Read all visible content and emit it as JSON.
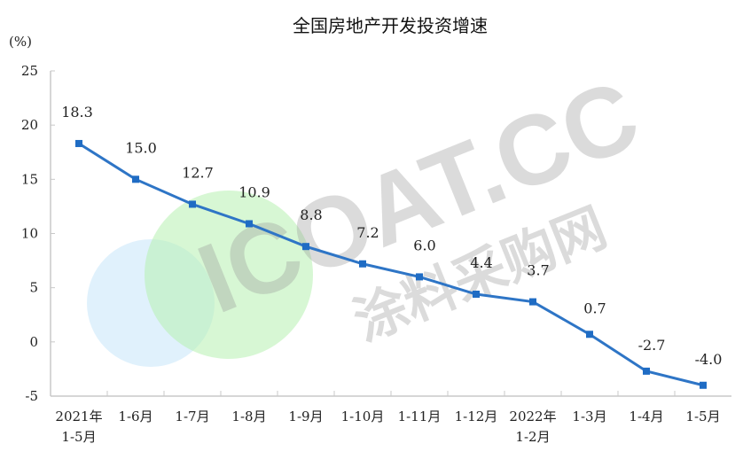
{
  "chart_data": {
    "type": "line",
    "title": "全国房地产开发投资增速",
    "ylabel": "(%)",
    "xlabel": "",
    "ylim": [
      -5,
      25
    ],
    "yticks": [
      -5,
      0,
      5,
      10,
      15,
      20,
      25
    ],
    "grid": false,
    "categories": [
      [
        "2021年",
        "1-5月"
      ],
      [
        "1-6月"
      ],
      [
        "1-7月"
      ],
      [
        "1-8月"
      ],
      [
        "1-9月"
      ],
      [
        "1-10月"
      ],
      [
        "1-11月"
      ],
      [
        "1-12月"
      ],
      [
        "2022年",
        "1-2月"
      ],
      [
        "1-3月"
      ],
      [
        "1-4月"
      ],
      [
        "1-5月"
      ]
    ],
    "series": [
      {
        "name": "全国房地产开发投资增速",
        "color": "#2e75c6",
        "values": [
          18.3,
          15.0,
          12.7,
          10.9,
          8.8,
          7.2,
          6.0,
          4.4,
          3.7,
          0.7,
          -2.7,
          -4.0
        ],
        "labels": [
          "18.3",
          "15.0",
          "12.7",
          "10.9",
          "8.8",
          "7.2",
          "6.0",
          "4.4",
          "3.7",
          "0.7",
          "-2.7",
          "-4.0"
        ]
      }
    ]
  },
  "watermark": {
    "text": "ICOAT.CC",
    "subtext": "涂料采购网"
  }
}
